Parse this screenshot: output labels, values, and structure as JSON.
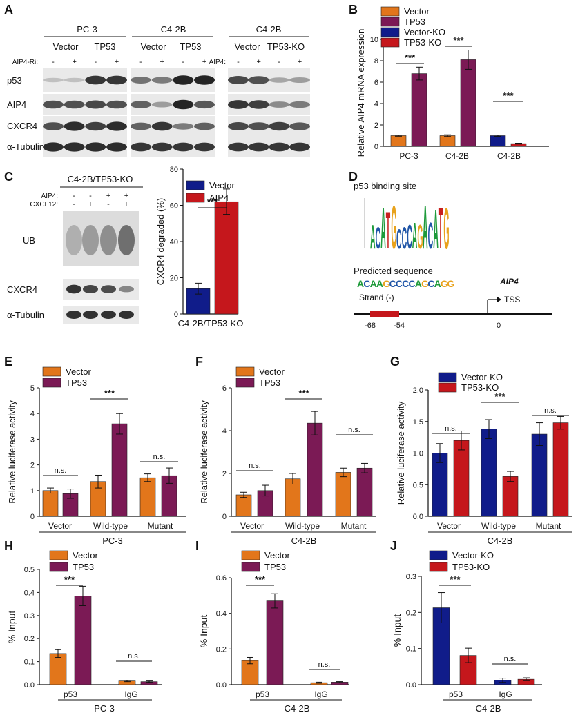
{
  "colors": {
    "orange": "#E2761B",
    "purple": "#7B1A55",
    "blue": "#101C8A",
    "red": "#C5171C",
    "blot_bg": "#e9e9e9",
    "logo_green": "#1E9A3A",
    "logo_blue": "#1F55A7",
    "logo_orange": "#E8A21C"
  },
  "panel_letters": [
    "A",
    "B",
    "C",
    "D",
    "E",
    "F",
    "G",
    "H",
    "I",
    "J"
  ],
  "panel_a": {
    "group_titles": [
      "PC-3",
      "C4-2B",
      "C4-2B"
    ],
    "condition_labels": [
      "Vector",
      "TP53",
      "Vector",
      "TP53",
      "Vector",
      "TP53-KO"
    ],
    "treatment_labels": [
      "AIP4-Ri:",
      "AIP4:"
    ],
    "lane_signs": [
      "-",
      "+",
      "-",
      "+",
      "-",
      "+",
      "-",
      "+",
      "-",
      "+",
      "-",
      "+"
    ],
    "row_labels": [
      "p53",
      "AIP4",
      "CXCR4",
      "α-Tubulin"
    ]
  },
  "panel_c": {
    "title": "C4-2B/TP53-KO",
    "treatment_labels": [
      "AIP4:",
      "CXCL12:"
    ],
    "aip4_signs": [
      "-",
      "-",
      "+",
      "+"
    ],
    "cxcl12_signs": [
      "-",
      "+",
      "-",
      "+"
    ],
    "row_labels": [
      "UB",
      "CXCR4",
      "α-Tubulin"
    ]
  },
  "panel_d": {
    "title": "p53 binding site",
    "predicted_label": "Predicted sequence",
    "sequence_letters": [
      "A",
      "C",
      "A",
      "A",
      "G",
      "C",
      "C",
      "C",
      "C",
      "A",
      "G",
      "C",
      "A",
      "G",
      "G"
    ],
    "strand": "Strand (-)",
    "gene": "AIP4",
    "tss": "TSS",
    "positions": [
      "-68",
      "-54",
      "0"
    ],
    "logo_letters": [
      "A",
      "C",
      "A",
      "T",
      "G",
      "C",
      "C",
      "C",
      "A",
      "G",
      "A",
      "C",
      "A",
      "T",
      "G"
    ]
  },
  "chart_data": [
    {
      "panel": "B",
      "type": "bar",
      "title": "",
      "ylabel": "Relative AIP4 mRNA expression",
      "xlabel": "",
      "ylim": [
        0,
        10
      ],
      "yticks": [
        0,
        2,
        4,
        6,
        8,
        10
      ],
      "categories": [
        "PC-3",
        "C4-2B",
        "C4-2B"
      ],
      "legend": [
        "Vector",
        "TP53",
        "Vector-KO",
        "TP53-KO"
      ],
      "series": [
        {
          "name": "Vector / Vector-KO",
          "values": [
            1.0,
            1.0,
            1.0
          ],
          "errors": [
            0.05,
            0.08,
            0.06
          ]
        },
        {
          "name": "TP53 / TP53-KO",
          "values": [
            6.8,
            8.1,
            0.25
          ],
          "errors": [
            0.6,
            0.9,
            0.04
          ]
        }
      ],
      "significance": [
        "***",
        "***",
        "***"
      ]
    },
    {
      "panel": "C",
      "type": "bar",
      "title": "",
      "ylabel": "CXCR4 degraded (%)",
      "xlabel": "C4-2B/TP53-KO",
      "ylim": [
        0,
        80
      ],
      "yticks": [
        0,
        20,
        40,
        60,
        80
      ],
      "legend": [
        "Vector",
        "AIP4"
      ],
      "series": [
        {
          "name": "Vector",
          "values": [
            14
          ],
          "errors": [
            3
          ]
        },
        {
          "name": "AIP4",
          "values": [
            62
          ],
          "errors": [
            7
          ]
        }
      ],
      "significance": [
        "***"
      ]
    },
    {
      "panel": "E",
      "type": "bar",
      "ylabel": "Relative luciferase activity",
      "xlabel": "PC-3",
      "ylim": [
        0,
        5
      ],
      "yticks": [
        0,
        1,
        2,
        3,
        4,
        5
      ],
      "categories": [
        "Vector",
        "Wild-type",
        "Mutant"
      ],
      "legend": [
        "Vector",
        "TP53"
      ],
      "series": [
        {
          "name": "Vector",
          "values": [
            1.0,
            1.35,
            1.5
          ],
          "errors": [
            0.1,
            0.25,
            0.15
          ]
        },
        {
          "name": "TP53",
          "values": [
            0.88,
            3.6,
            1.58
          ],
          "errors": [
            0.18,
            0.4,
            0.3
          ]
        }
      ],
      "significance": [
        "n.s.",
        "***",
        "n.s."
      ]
    },
    {
      "panel": "F",
      "type": "bar",
      "ylabel": "Relative luciferase activity",
      "xlabel": "C4-2B",
      "ylim": [
        0,
        6
      ],
      "yticks": [
        0,
        2,
        4,
        6
      ],
      "categories": [
        "Vector",
        "Wild-type",
        "Mutant"
      ],
      "legend": [
        "Vector",
        "TP53"
      ],
      "series": [
        {
          "name": "Vector",
          "values": [
            1.0,
            1.75,
            2.05
          ],
          "errors": [
            0.12,
            0.25,
            0.2
          ]
        },
        {
          "name": "TP53",
          "values": [
            1.2,
            4.35,
            2.25
          ],
          "errors": [
            0.25,
            0.55,
            0.22
          ]
        }
      ],
      "significance": [
        "n.s.",
        "***",
        "n.s."
      ]
    },
    {
      "panel": "G",
      "type": "bar",
      "ylabel": "Relative luciferase activity",
      "xlabel": "C4-2B",
      "ylim": [
        0,
        2.0
      ],
      "yticks": [
        "0.0",
        "0.5",
        "1.0",
        "1.5",
        "2.0"
      ],
      "categories": [
        "Vector",
        "Wild-type",
        "Mutant"
      ],
      "legend": [
        "Vector-KO",
        "TP53-KO"
      ],
      "series": [
        {
          "name": "Vector-KO",
          "values": [
            1.0,
            1.38,
            1.3
          ],
          "errors": [
            0.15,
            0.15,
            0.18
          ]
        },
        {
          "name": "TP53-KO",
          "values": [
            1.2,
            0.63,
            1.48
          ],
          "errors": [
            0.15,
            0.08,
            0.1
          ]
        }
      ],
      "significance": [
        "n.s.",
        "***",
        "n.s."
      ]
    },
    {
      "panel": "H",
      "type": "bar",
      "ylabel": "% Input",
      "xlabel": "PC-3",
      "ylim": [
        0,
        0.5
      ],
      "yticks": [
        "0.0",
        "0.1",
        "0.2",
        "0.3",
        "0.4",
        "0.5"
      ],
      "categories": [
        "p53",
        "IgG"
      ],
      "legend": [
        "Vector",
        "TP53"
      ],
      "series": [
        {
          "name": "Vector",
          "values": [
            0.135,
            0.016
          ],
          "errors": [
            0.017,
            0.003
          ]
        },
        {
          "name": "TP53",
          "values": [
            0.385,
            0.013
          ],
          "errors": [
            0.042,
            0.003
          ]
        }
      ],
      "significance": [
        "***",
        "n.s."
      ]
    },
    {
      "panel": "I",
      "type": "bar",
      "ylabel": "% Input",
      "xlabel": "C4-2B",
      "ylim": [
        0,
        0.6
      ],
      "yticks": [
        "0.0",
        "0.2",
        "0.4",
        "0.6"
      ],
      "categories": [
        "p53",
        "IgG"
      ],
      "legend": [
        "Vector",
        "TP53"
      ],
      "series": [
        {
          "name": "Vector",
          "values": [
            0.135,
            0.011
          ],
          "errors": [
            0.018,
            0.003
          ]
        },
        {
          "name": "TP53",
          "values": [
            0.47,
            0.014
          ],
          "errors": [
            0.04,
            0.003
          ]
        }
      ],
      "significance": [
        "***",
        "n.s."
      ]
    },
    {
      "panel": "J",
      "type": "bar",
      "ylabel": "% Input",
      "xlabel": "C4-2B",
      "ylim": [
        0,
        0.3
      ],
      "yticks": [
        "0.0",
        "0.1",
        "0.2",
        "0.3"
      ],
      "categories": [
        "p53",
        "IgG"
      ],
      "legend": [
        "Vector-KO",
        "TP53-KO"
      ],
      "series": [
        {
          "name": "Vector-KO",
          "values": [
            0.213,
            0.012
          ],
          "errors": [
            0.042,
            0.006
          ]
        },
        {
          "name": "TP53-KO",
          "values": [
            0.081,
            0.015
          ],
          "errors": [
            0.02,
            0.004
          ]
        }
      ],
      "significance": [
        "***",
        "n.s."
      ]
    }
  ]
}
